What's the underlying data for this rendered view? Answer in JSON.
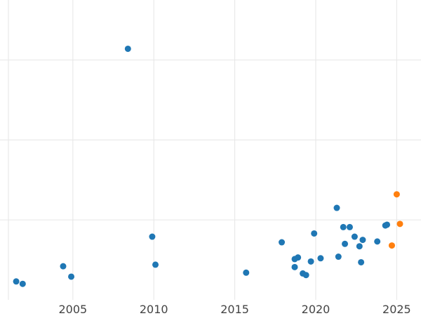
{
  "chart_data": {
    "type": "scatter",
    "title": "",
    "xlabel": "",
    "ylabel": "",
    "grid": true,
    "legend": "none",
    "xlim": [
      2000.5,
      2026.5
    ],
    "ylim": [
      0,
      37.5
    ],
    "x_ticks": [
      2005,
      2010,
      2015,
      2020,
      2025
    ],
    "x_tick_labels": [
      "2005",
      "2010",
      "2015",
      "2020",
      "2025"
    ],
    "y_gridlines": [
      10,
      20,
      30
    ],
    "series": [
      {
        "color": "#1f77b4",
        "points": [
          {
            "x": 2001.5,
            "y": 2.3
          },
          {
            "x": 2001.9,
            "y": 2.0
          },
          {
            "x": 2004.4,
            "y": 4.2
          },
          {
            "x": 2004.9,
            "y": 2.9
          },
          {
            "x": 2008.4,
            "y": 31.4
          },
          {
            "x": 2009.9,
            "y": 7.9
          },
          {
            "x": 2010.1,
            "y": 4.4
          },
          {
            "x": 2015.7,
            "y": 3.4
          },
          {
            "x": 2017.9,
            "y": 7.2
          },
          {
            "x": 2018.7,
            "y": 4.1
          },
          {
            "x": 2018.7,
            "y": 5.1
          },
          {
            "x": 2018.9,
            "y": 5.3
          },
          {
            "x": 2019.2,
            "y": 3.3
          },
          {
            "x": 2019.4,
            "y": 3.1
          },
          {
            "x": 2019.7,
            "y": 4.8
          },
          {
            "x": 2019.9,
            "y": 8.3
          },
          {
            "x": 2020.3,
            "y": 5.2
          },
          {
            "x": 2021.3,
            "y": 11.5
          },
          {
            "x": 2021.4,
            "y": 5.4
          },
          {
            "x": 2021.7,
            "y": 9.1
          },
          {
            "x": 2021.8,
            "y": 7.0
          },
          {
            "x": 2022.1,
            "y": 9.1
          },
          {
            "x": 2022.4,
            "y": 7.9
          },
          {
            "x": 2022.7,
            "y": 6.7
          },
          {
            "x": 2022.8,
            "y": 4.7
          },
          {
            "x": 2022.9,
            "y": 7.5
          },
          {
            "x": 2023.8,
            "y": 7.3
          },
          {
            "x": 2024.3,
            "y": 9.3
          },
          {
            "x": 2024.4,
            "y": 9.4
          }
        ]
      },
      {
        "color": "#ff7f0e",
        "points": [
          {
            "x": 2024.7,
            "y": 6.8
          },
          {
            "x": 2025.0,
            "y": 13.2
          },
          {
            "x": 2025.2,
            "y": 9.5
          }
        ]
      }
    ]
  }
}
